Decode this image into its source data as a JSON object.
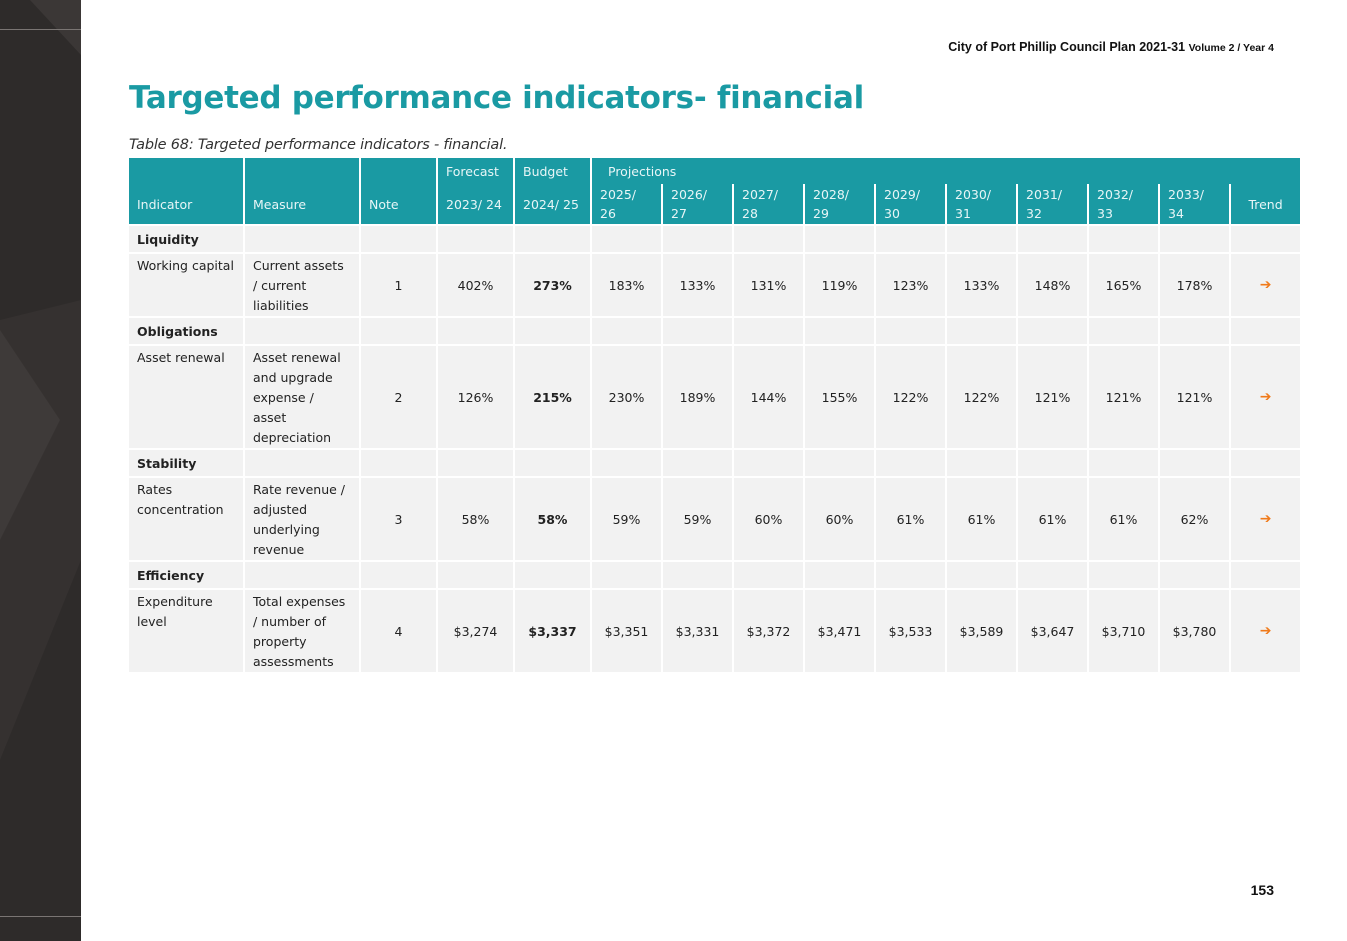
{
  "header": {
    "doc_title": "City of Port Phillip Council Plan 2021-31",
    "volume": "Volume 2 / Year 4"
  },
  "page_title": "Targeted performance indicators- financial",
  "table_caption": "Table 68: Targeted performance indicators - financial.",
  "table": {
    "group_headers": {
      "forecast": "Forecast",
      "budget": "Budget",
      "projections": "Projections"
    },
    "col_headers": {
      "indicator": "Indicator",
      "measure": "Measure",
      "note": "Note",
      "years": [
        "2023/ 24",
        "2024/ 25",
        "2025/ 26",
        "2026/ 27",
        "2027/ 28",
        "2028/ 29",
        "2029/ 30",
        "2030/ 31",
        "2031/ 32",
        "2032/ 33",
        "2033/ 34"
      ],
      "trend": "Trend"
    },
    "sections": [
      {
        "name": "Liquidity",
        "rows": [
          {
            "indicator": "Working capital",
            "measure": "Current assets / current liabilities",
            "note": "1",
            "values": [
              "402%",
              "273%",
              "183%",
              "133%",
              "131%",
              "119%",
              "123%",
              "133%",
              "148%",
              "165%",
              "178%"
            ],
            "trend": "➔"
          }
        ]
      },
      {
        "name": "Obligations",
        "rows": [
          {
            "indicator": "Asset renewal",
            "measure": "Asset renewal and upgrade expense / asset depreciation",
            "note": "2",
            "values": [
              "126%",
              "215%",
              "230%",
              "189%",
              "144%",
              "155%",
              "122%",
              "122%",
              "121%",
              "121%",
              "121%"
            ],
            "trend": "➔"
          }
        ]
      },
      {
        "name": "Stability",
        "rows": [
          {
            "indicator": "Rates concentration",
            "measure": "Rate revenue / adjusted underlying revenue",
            "note": "3",
            "values": [
              "58%",
              "58%",
              "59%",
              "59%",
              "60%",
              "60%",
              "61%",
              "61%",
              "61%",
              "61%",
              "62%"
            ],
            "trend": "➔"
          }
        ]
      },
      {
        "name": "Efficiency",
        "rows": [
          {
            "indicator": "Expenditure level",
            "measure": "Total expenses / number of property assessments",
            "note": "4",
            "values": [
              "$3,274",
              "$3,337",
              "$3,351",
              "$3,331",
              "$3,372",
              "$3,471",
              "$3,533",
              "$3,589",
              "$3,647",
              "$3,710",
              "$3,780"
            ],
            "trend": "➔"
          }
        ]
      }
    ]
  },
  "colors": {
    "accent_teal": "#1a9aa3",
    "row_bg": "#f2f2f2",
    "trend_orange": "#f07a1a",
    "sidebar_dark": "#2e2b2a"
  },
  "page_number": "153"
}
